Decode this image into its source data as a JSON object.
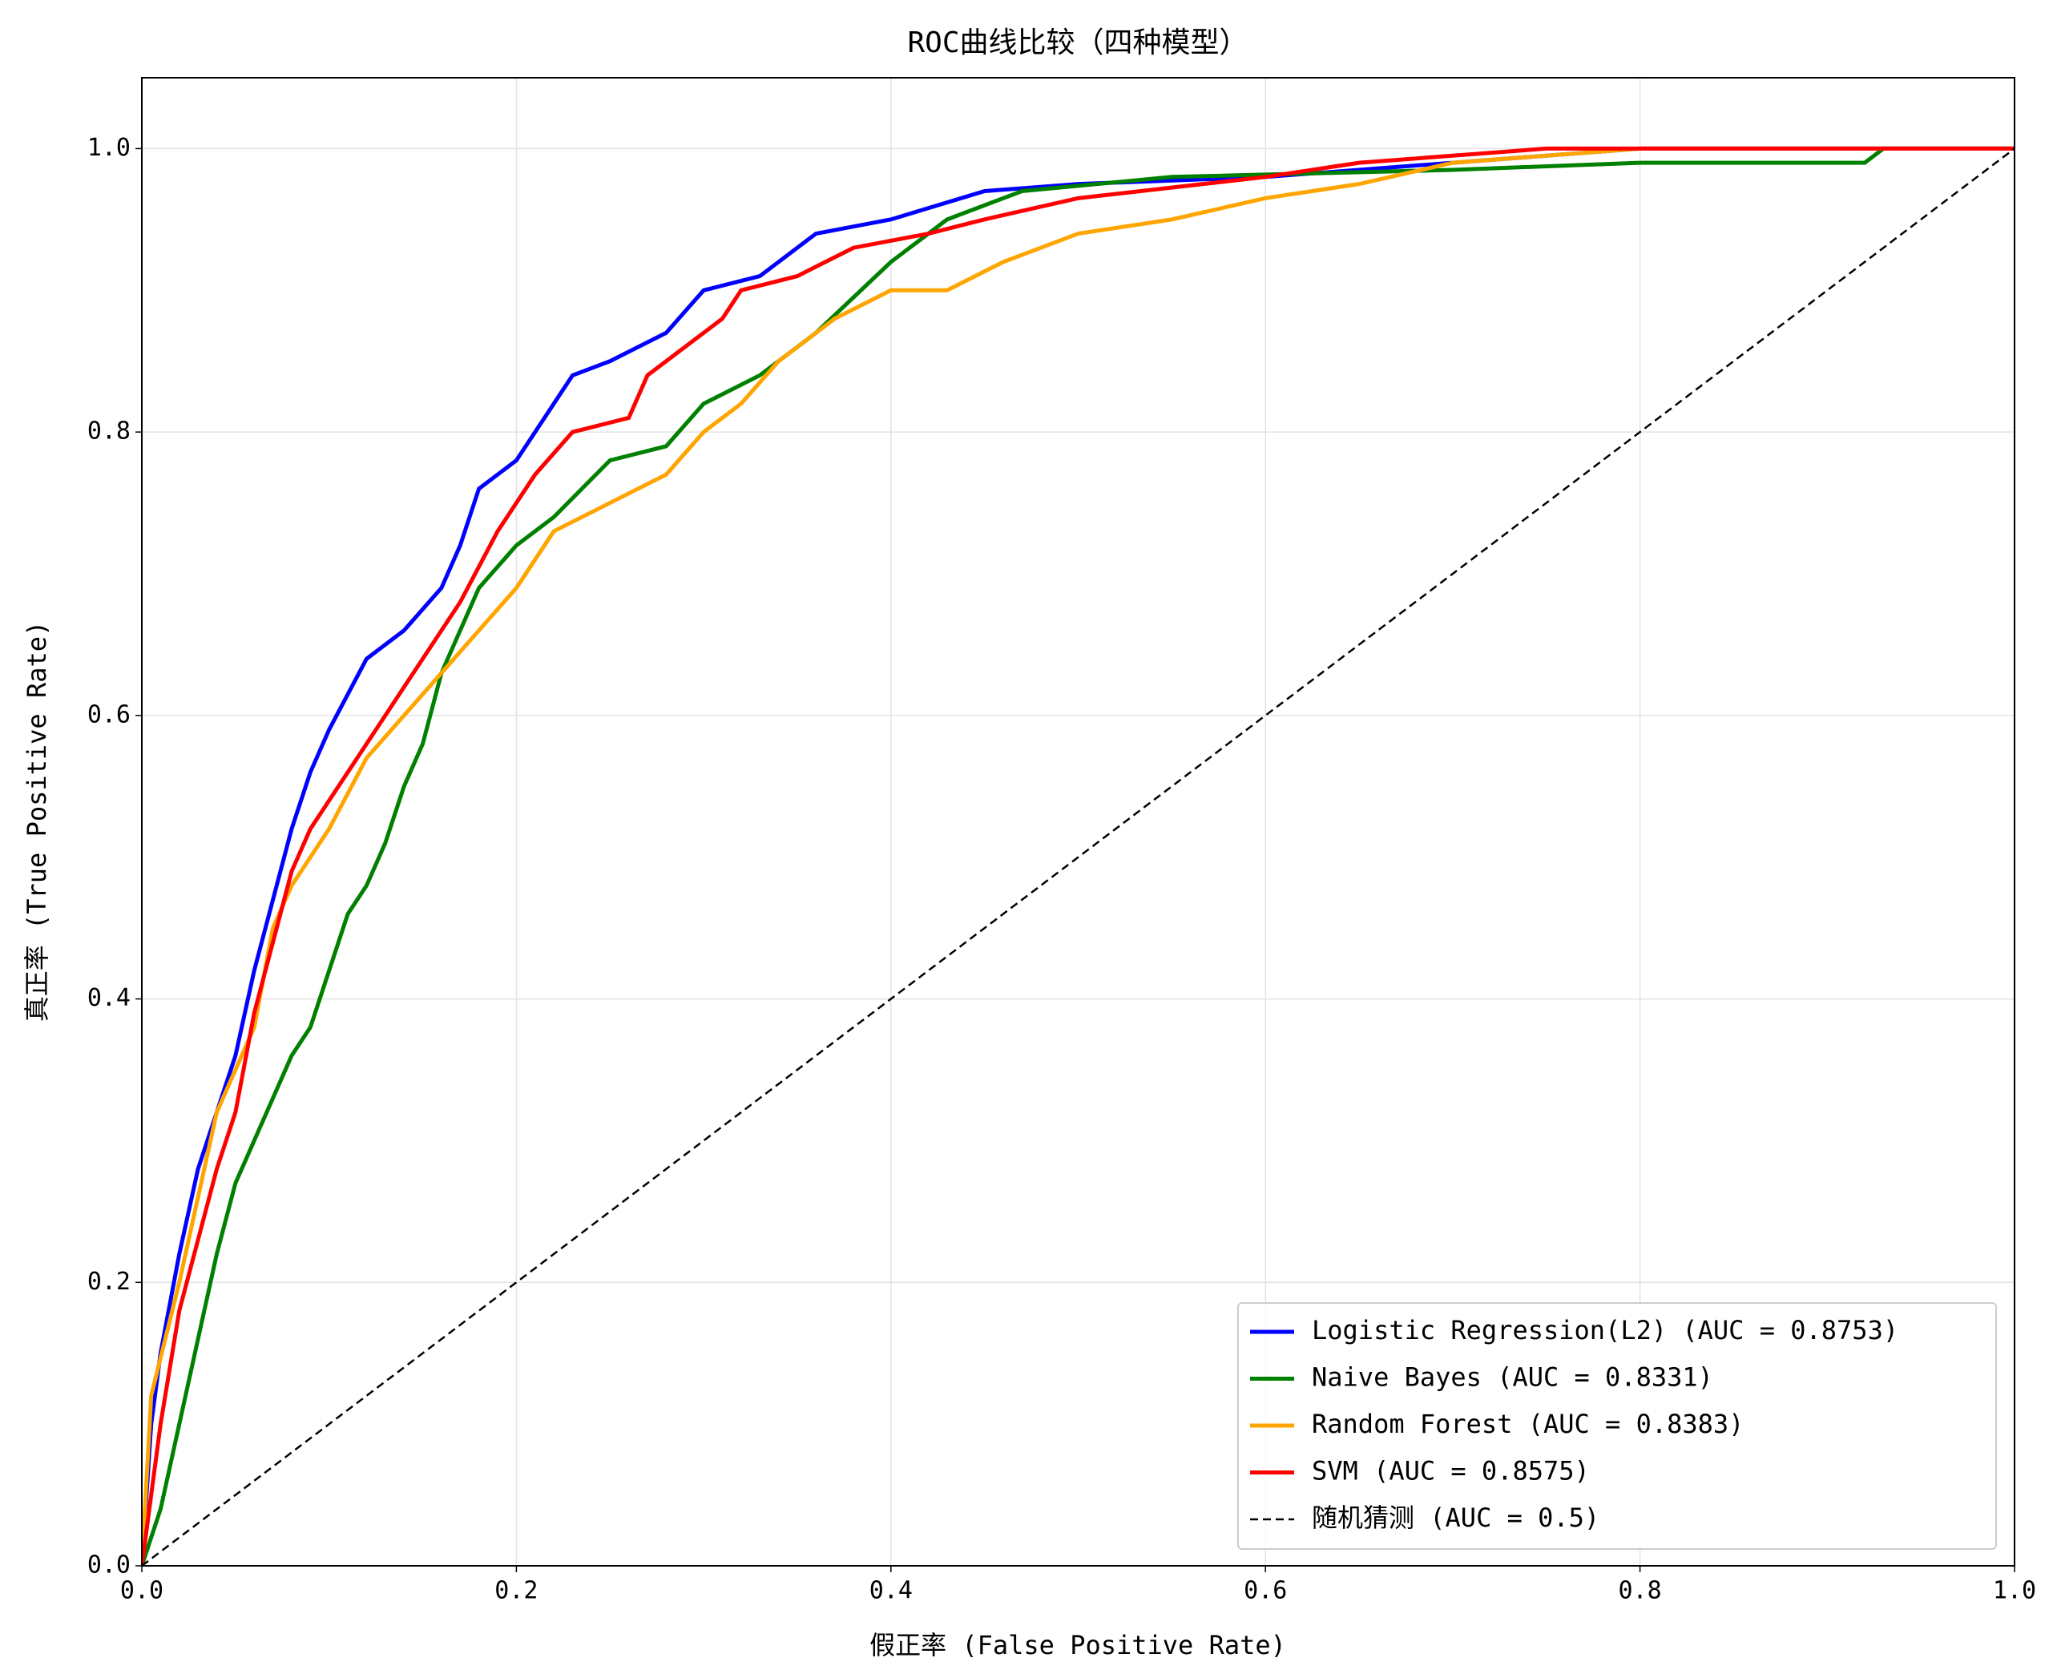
{
  "chart_data": {
    "type": "line",
    "title": "ROC曲线比较（四种模型）",
    "xlabel": "假正率 (False Positive Rate)",
    "ylabel": "真正率 (True Positive Rate)",
    "xlim": [
      0,
      1
    ],
    "ylim": [
      0,
      1.05
    ],
    "xticks": [
      {
        "value": 0,
        "label": "0.0"
      },
      0.2,
      0.4,
      0.6,
      0.8,
      {
        "value": 1,
        "label": "1.0"
      }
    ],
    "yticks": [
      {
        "value": 0,
        "label": "0.0"
      },
      0.2,
      0.4,
      0.6,
      0.8,
      {
        "value": 1,
        "label": "1.0"
      }
    ],
    "grid": true,
    "legend": "lower right",
    "series": [
      {
        "name": "Logistic Regression(L2) (AUC = 0.8753)",
        "color": "#0000ff",
        "x": [
          0,
          0.005,
          0.01,
          0.02,
          0.03,
          0.04,
          0.05,
          0.06,
          0.07,
          0.08,
          0.09,
          0.1,
          0.12,
          0.14,
          0.16,
          0.17,
          0.18,
          0.2,
          0.22,
          0.23,
          0.25,
          0.28,
          0.3,
          0.33,
          0.36,
          0.4,
          0.45,
          0.5,
          0.6,
          0.7,
          0.8,
          1
        ],
        "values": [
          0,
          0.1,
          0.15,
          0.22,
          0.28,
          0.32,
          0.36,
          0.42,
          0.47,
          0.52,
          0.56,
          0.59,
          0.64,
          0.66,
          0.69,
          0.72,
          0.76,
          0.78,
          0.82,
          0.84,
          0.85,
          0.87,
          0.9,
          0.91,
          0.94,
          0.95,
          0.97,
          0.975,
          0.98,
          0.99,
          1,
          1
        ]
      },
      {
        "name": "Naive Bayes (AUC = 0.8331)",
        "color": "#008000",
        "x": [
          0,
          0.01,
          0.02,
          0.03,
          0.04,
          0.05,
          0.06,
          0.07,
          0.08,
          0.09,
          0.1,
          0.11,
          0.12,
          0.13,
          0.14,
          0.15,
          0.16,
          0.17,
          0.18,
          0.2,
          0.22,
          0.25,
          0.28,
          0.3,
          0.33,
          0.36,
          0.4,
          0.43,
          0.47,
          0.55,
          0.7,
          0.8,
          0.92,
          0.93,
          1
        ],
        "values": [
          0,
          0.04,
          0.1,
          0.16,
          0.22,
          0.27,
          0.3,
          0.33,
          0.36,
          0.38,
          0.42,
          0.46,
          0.48,
          0.51,
          0.55,
          0.58,
          0.63,
          0.66,
          0.69,
          0.72,
          0.74,
          0.78,
          0.79,
          0.82,
          0.84,
          0.87,
          0.92,
          0.95,
          0.97,
          0.98,
          0.985,
          0.99,
          0.99,
          1,
          1
        ]
      },
      {
        "name": "Random Forest (AUC = 0.8383)",
        "color": "#ffa500",
        "x": [
          0,
          0.005,
          0.02,
          0.03,
          0.04,
          0.05,
          0.06,
          0.07,
          0.08,
          0.1,
          0.12,
          0.14,
          0.16,
          0.18,
          0.2,
          0.22,
          0.25,
          0.28,
          0.3,
          0.32,
          0.34,
          0.37,
          0.4,
          0.43,
          0.46,
          0.5,
          0.55,
          0.6,
          0.65,
          0.7,
          0.8,
          1
        ],
        "values": [
          0,
          0.12,
          0.2,
          0.26,
          0.32,
          0.35,
          0.38,
          0.45,
          0.48,
          0.52,
          0.57,
          0.6,
          0.63,
          0.66,
          0.69,
          0.73,
          0.75,
          0.77,
          0.8,
          0.82,
          0.85,
          0.88,
          0.9,
          0.9,
          0.92,
          0.94,
          0.95,
          0.965,
          0.975,
          0.99,
          1,
          1
        ]
      },
      {
        "name": "SVM (AUC = 0.8575)",
        "color": "#ff0000",
        "x": [
          0,
          0.01,
          0.02,
          0.03,
          0.04,
          0.05,
          0.06,
          0.07,
          0.08,
          0.09,
          0.11,
          0.13,
          0.15,
          0.17,
          0.19,
          0.21,
          0.23,
          0.26,
          0.27,
          0.29,
          0.31,
          0.32,
          0.35,
          0.38,
          0.42,
          0.45,
          0.5,
          0.6,
          0.65,
          0.75,
          1
        ],
        "values": [
          0,
          0.1,
          0.18,
          0.23,
          0.28,
          0.32,
          0.39,
          0.44,
          0.49,
          0.52,
          0.56,
          0.6,
          0.64,
          0.68,
          0.73,
          0.77,
          0.8,
          0.81,
          0.84,
          0.86,
          0.88,
          0.9,
          0.91,
          0.93,
          0.94,
          0.95,
          0.965,
          0.98,
          0.99,
          1,
          1
        ]
      },
      {
        "name": "随机猜测 (AUC = 0.5)",
        "color": "#000000",
        "dashed": true,
        "x": [
          0,
          1
        ],
        "values": [
          0,
          1
        ]
      }
    ]
  }
}
